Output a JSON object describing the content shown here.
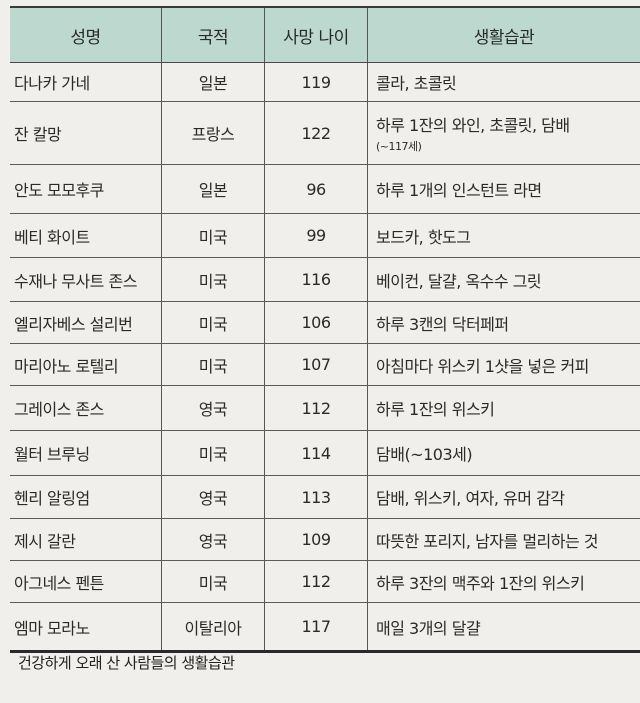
{
  "table": {
    "headers": [
      "성명",
      "국적",
      "사망 나이",
      "생활습관"
    ],
    "rows": [
      {
        "name": "다나카 가네",
        "nationality": "일본",
        "age": "119",
        "habit": "콜라, 초콜릿",
        "note": ""
      },
      {
        "name": "잔 칼망",
        "nationality": "프랑스",
        "age": "122",
        "habit": "하루 1잔의 와인, 초콜릿, 담배",
        "note": "(~117세)"
      },
      {
        "name": "안도 모모후쿠",
        "nationality": "일본",
        "age": "96",
        "habit": "하루 1개의 인스턴트 라면",
        "note": ""
      },
      {
        "name": "베티 화이트",
        "nationality": "미국",
        "age": "99",
        "habit": "보드카, 핫도그",
        "note": ""
      },
      {
        "name": "수재나 무사트 존스",
        "nationality": "미국",
        "age": "116",
        "habit": "베이컨, 달걀, 옥수수 그릿",
        "note": ""
      },
      {
        "name": "엘리자베스 설리번",
        "nationality": "미국",
        "age": "106",
        "habit": "하루 3캔의 닥터페퍼",
        "note": ""
      },
      {
        "name": "마리아노 로텔리",
        "nationality": "미국",
        "age": "107",
        "habit": "아침마다 위스키 1샷을 넣은 커피",
        "note": ""
      },
      {
        "name": "그레이스 존스",
        "nationality": "영국",
        "age": "112",
        "habit": "하루 1잔의 위스키",
        "note": ""
      },
      {
        "name": "월터 브루닝",
        "nationality": "미국",
        "age": "114",
        "habit": "담배(~103세)",
        "note": ""
      },
      {
        "name": "헨리 알링엄",
        "nationality": "영국",
        "age": "113",
        "habit": "담배, 위스키, 여자, 유머 감각",
        "note": ""
      },
      {
        "name": "제시 갈란",
        "nationality": "영국",
        "age": "109",
        "habit": "따뜻한 포리지, 남자를 멀리하는 것",
        "note": ""
      },
      {
        "name": "아그네스 펜튼",
        "nationality": "미국",
        "age": "112",
        "habit": "하루 3잔의 맥주와 1잔의 위스키",
        "note": ""
      },
      {
        "name": "엠마 모라노",
        "nationality": "이탈리아",
        "age": "117",
        "habit": "매일 3개의 달걀",
        "note": ""
      }
    ]
  },
  "caption": "건강하게 오래 산 사람들의 생활습관",
  "colors": {
    "header_bg": "#bcd8cf",
    "paper": "#f1efec"
  }
}
